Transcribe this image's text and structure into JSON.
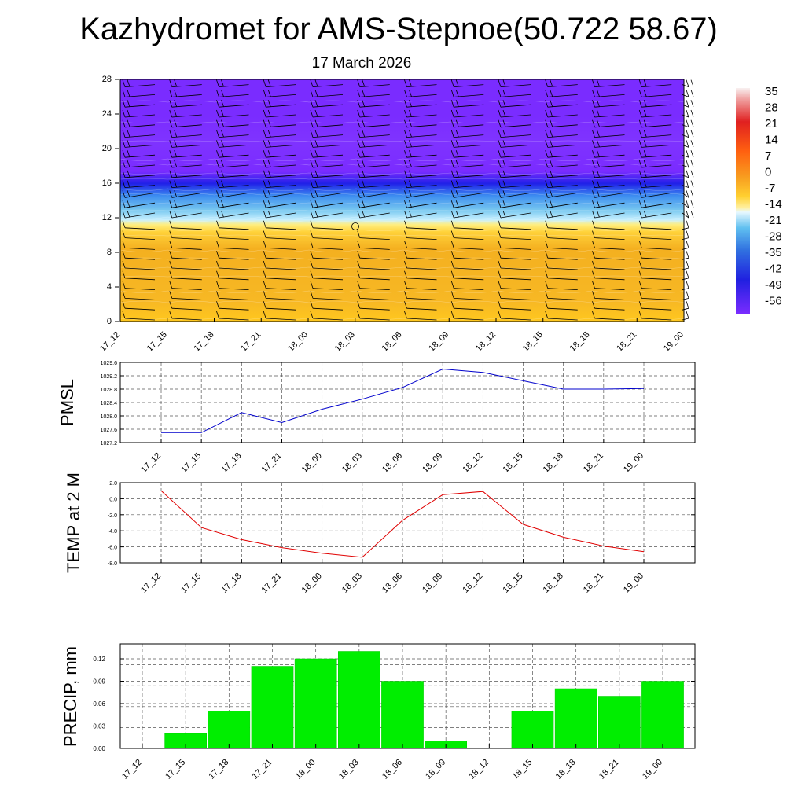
{
  "title": "Kazhydromet for AMS-Stepnoe(50.722 58.67)",
  "subtitle": "17 March 2026",
  "time_labels": [
    "17_12",
    "17_15",
    "17_18",
    "17_21",
    "18_00",
    "18_03",
    "18_06",
    "18_09",
    "18_12",
    "18_15",
    "18_18",
    "18_21",
    "19_00"
  ],
  "colors": {
    "pmsl_line": "#0000cc",
    "temp_line": "#e00000",
    "precip_bar": "#00ee00",
    "cross_section_warm": "#f6b820",
    "cross_section_cold": "#7a2cff"
  },
  "chart_data": [
    {
      "type": "heatmap",
      "name": "cross-section",
      "y_ticks": [
        "0",
        "4",
        "8",
        "12",
        "16",
        "20",
        "24",
        "28"
      ],
      "ylim": [
        0,
        28
      ],
      "colorbar": {
        "labels": [
          "35",
          "28",
          "21",
          "14",
          "7",
          "0",
          "-7",
          "-14",
          "-21",
          "-28",
          "-35",
          "-42",
          "-49",
          "-56"
        ],
        "range": [
          -60,
          38
        ]
      },
      "temperature_profile": [
        {
          "level": 0,
          "value": -6
        },
        {
          "level": 4,
          "value": -4
        },
        {
          "level": 8,
          "value": -4
        },
        {
          "level": 10.5,
          "value": -7
        },
        {
          "level": 11.5,
          "value": -14
        },
        {
          "level": 13,
          "value": -28
        },
        {
          "level": 15,
          "value": -42
        },
        {
          "level": 17.5,
          "value": -56
        },
        {
          "level": 28,
          "value": -58
        }
      ]
    },
    {
      "type": "line",
      "name": "PMSL",
      "ylabel": "PMSL",
      "y_ticks": [
        "1027.2",
        "1027.6",
        "1028.0",
        "1028.4",
        "1028.8",
        "1029.2",
        "1029.6"
      ],
      "ylim": [
        1027.2,
        1029.6
      ],
      "categories": [
        "17_12",
        "17_15",
        "17_18",
        "17_21",
        "18_00",
        "18_03",
        "18_06",
        "18_09",
        "18_12",
        "18_15",
        "18_18",
        "18_21",
        "19_00"
      ],
      "values": [
        1027.5,
        1027.5,
        1028.1,
        1027.8,
        1028.2,
        1028.5,
        1028.85,
        1029.4,
        1029.3,
        1029.05,
        1028.8,
        1028.8,
        1028.82
      ]
    },
    {
      "type": "line",
      "name": "TEMP at 2 M",
      "ylabel": "TEMP at 2 M",
      "y_ticks": [
        "-8.0",
        "-6.0",
        "-4.0",
        "-2.0",
        "0.0",
        "2.0"
      ],
      "ylim": [
        -8.0,
        2.0
      ],
      "categories": [
        "17_12",
        "17_15",
        "17_18",
        "17_21",
        "18_00",
        "18_03",
        "18_06",
        "18_09",
        "18_12",
        "18_15",
        "18_18",
        "18_21",
        "19_00"
      ],
      "values": [
        1.0,
        -3.6,
        -5.1,
        -6.1,
        -6.8,
        -7.3,
        -2.7,
        0.5,
        0.9,
        -3.2,
        -4.8,
        -5.9,
        -6.6
      ]
    },
    {
      "type": "bar",
      "name": "PRECIP, mm",
      "ylabel": "PRECIP, mm",
      "y_ticks": [
        "0.00",
        "0.03",
        "0.06",
        "0.09",
        "0.12"
      ],
      "ylim": [
        0,
        0.14
      ],
      "categories": [
        "17_12",
        "17_15",
        "17_18",
        "17_21",
        "18_00",
        "18_03",
        "18_06",
        "18_09",
        "18_12",
        "18_15",
        "18_18",
        "18_21",
        "19_00"
      ],
      "values": [
        0,
        0.02,
        0.05,
        0.11,
        0.12,
        0.13,
        0.09,
        0.01,
        0,
        0.05,
        0.08,
        0.07,
        0.09
      ]
    }
  ]
}
